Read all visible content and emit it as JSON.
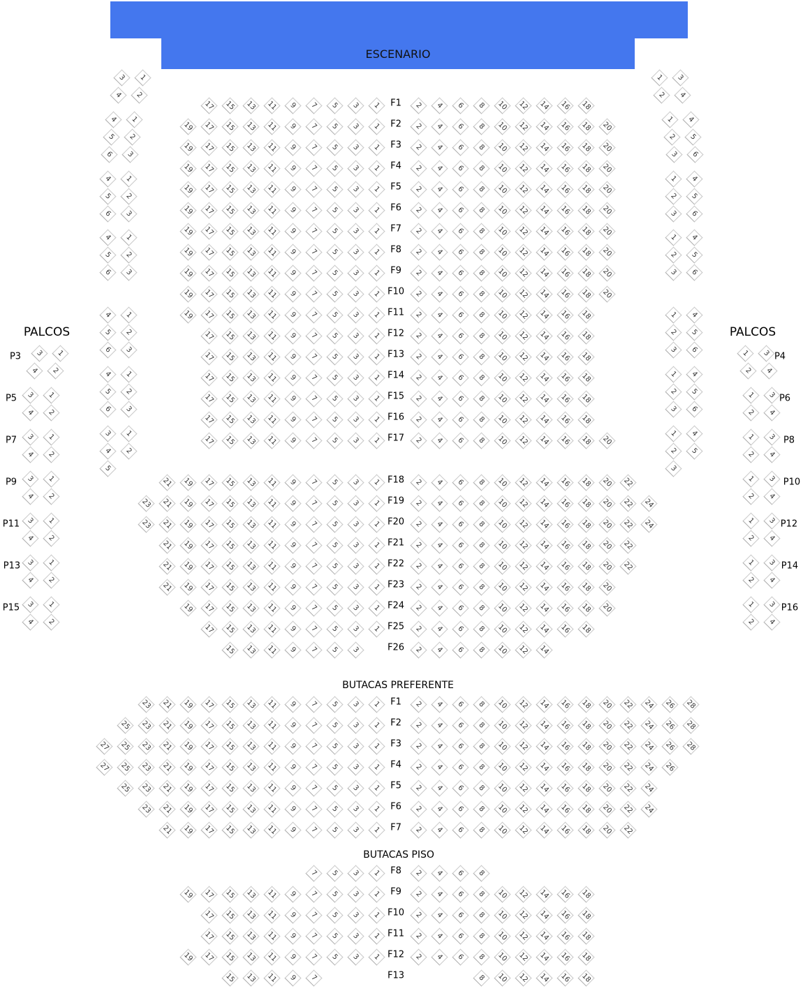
{
  "colors": {
    "stage": "#4477ee",
    "seat_border": "#c8c8c8",
    "seat_text": "#333333"
  },
  "stage": {
    "label": "ESCENARIO"
  },
  "palcos_left_title": "PALCOS",
  "palcos_right_title": "PALCOS",
  "main_section": {
    "rows": [
      {
        "label": "F1",
        "left": [
          1,
          17
        ],
        "right": [
          2,
          18
        ]
      },
      {
        "label": "F2",
        "left": [
          1,
          19
        ],
        "right": [
          2,
          20
        ]
      },
      {
        "label": "F3",
        "left": [
          1,
          19
        ],
        "right": [
          2,
          20
        ]
      },
      {
        "label": "F4",
        "left": [
          1,
          19
        ],
        "right": [
          2,
          20
        ]
      },
      {
        "label": "F5",
        "left": [
          1,
          19
        ],
        "right": [
          2,
          20
        ]
      },
      {
        "label": "F6",
        "left": [
          1,
          19
        ],
        "right": [
          2,
          20
        ]
      },
      {
        "label": "F7",
        "left": [
          1,
          19
        ],
        "right": [
          2,
          20
        ]
      },
      {
        "label": "F8",
        "left": [
          1,
          19
        ],
        "right": [
          2,
          20
        ]
      },
      {
        "label": "F9",
        "left": [
          1,
          19
        ],
        "right": [
          2,
          20
        ]
      },
      {
        "label": "F10",
        "left": [
          1,
          19
        ],
        "right": [
          2,
          20
        ]
      },
      {
        "label": "F11",
        "left": [
          1,
          19
        ],
        "right": [
          2,
          18
        ]
      },
      {
        "label": "F12",
        "left": [
          1,
          17
        ],
        "right": [
          2,
          18
        ]
      },
      {
        "label": "F13",
        "left": [
          1,
          17
        ],
        "right": [
          2,
          18
        ]
      },
      {
        "label": "F14",
        "left": [
          1,
          17
        ],
        "right": [
          2,
          18
        ]
      },
      {
        "label": "F15",
        "left": [
          1,
          17
        ],
        "right": [
          2,
          18
        ]
      },
      {
        "label": "F16",
        "left": [
          1,
          17
        ],
        "right": [
          2,
          18
        ]
      },
      {
        "label": "F17",
        "left": [
          1,
          17
        ],
        "right": [
          2,
          20
        ]
      },
      {
        "label": "F18",
        "left": [
          1,
          21
        ],
        "right": [
          2,
          22
        ]
      },
      {
        "label": "F19",
        "left": [
          1,
          23
        ],
        "right": [
          2,
          24
        ]
      },
      {
        "label": "F20",
        "left": [
          1,
          23
        ],
        "right": [
          2,
          24
        ]
      },
      {
        "label": "F21",
        "left": [
          1,
          21
        ],
        "right": [
          2,
          22
        ]
      },
      {
        "label": "F22",
        "left": [
          1,
          21
        ],
        "right": [
          2,
          22
        ]
      },
      {
        "label": "F23",
        "left": [
          1,
          21
        ],
        "right": [
          2,
          20
        ]
      },
      {
        "label": "F24",
        "left": [
          1,
          19
        ],
        "right": [
          2,
          20
        ]
      },
      {
        "label": "F25",
        "left": [
          1,
          17
        ],
        "right": [
          2,
          18
        ]
      },
      {
        "label": "F26",
        "left": [
          3,
          15
        ],
        "right": [
          2,
          14
        ]
      }
    ]
  },
  "preferente_section": {
    "title": "BUTACAS PREFERENTE",
    "rows": [
      {
        "label": "F1",
        "left": [
          1,
          23
        ],
        "right": [
          2,
          28
        ]
      },
      {
        "label": "F2",
        "left": [
          1,
          25
        ],
        "right": [
          2,
          28
        ]
      },
      {
        "label": "F3",
        "left": [
          1,
          27
        ],
        "right": [
          2,
          28
        ]
      },
      {
        "label": "F4",
        "left": [
          1,
          27
        ],
        "right": [
          2,
          26
        ]
      },
      {
        "label": "F5",
        "left": [
          1,
          25
        ],
        "right": [
          2,
          24
        ]
      },
      {
        "label": "F6",
        "left": [
          1,
          23
        ],
        "right": [
          2,
          24
        ]
      },
      {
        "label": "F7",
        "left": [
          1,
          21
        ],
        "right": [
          2,
          22
        ]
      }
    ]
  },
  "piso_section": {
    "title": "BUTACAS PISO",
    "rows": [
      {
        "label": "F8",
        "left": [
          1,
          7
        ],
        "right": [
          2,
          8
        ]
      },
      {
        "label": "F9",
        "left": [
          1,
          19
        ],
        "right": [
          2,
          18
        ]
      },
      {
        "label": "F10",
        "left": [
          1,
          17
        ],
        "right": [
          2,
          18
        ]
      },
      {
        "label": "F11",
        "left": [
          1,
          17
        ],
        "right": [
          2,
          18
        ]
      },
      {
        "label": "F12",
        "left": [
          1,
          19
        ],
        "right": [
          2,
          18
        ]
      },
      {
        "label": "F13",
        "left": [
          7,
          15
        ],
        "right": [
          8,
          18
        ]
      }
    ]
  },
  "side_boxes_left": [
    [
      [
        "3",
        "1"
      ],
      [
        "4",
        "2"
      ]
    ],
    [
      [
        "4",
        "1"
      ],
      [
        "5",
        "2"
      ],
      [
        "6",
        "3"
      ]
    ],
    [
      [
        "4",
        "1"
      ],
      [
        "5",
        "2"
      ],
      [
        "6",
        "3"
      ]
    ],
    [
      [
        "4",
        "1"
      ],
      [
        "5",
        "2"
      ],
      [
        "6",
        "3"
      ]
    ],
    [
      [
        "4",
        "1"
      ],
      [
        "5",
        "2"
      ],
      [
        "6",
        "3"
      ]
    ],
    [
      [
        "4",
        "1"
      ],
      [
        "5",
        "2"
      ],
      [
        "6",
        "3"
      ]
    ],
    [
      [
        "3",
        "1"
      ],
      [
        "4",
        "2"
      ],
      [
        "5"
      ]
    ]
  ],
  "side_boxes_right": [
    [
      [
        "1",
        "3"
      ],
      [
        "2",
        "4"
      ]
    ],
    [
      [
        "1",
        "4"
      ],
      [
        "2",
        "5"
      ],
      [
        "3",
        "6"
      ]
    ],
    [
      [
        "1",
        "4"
      ],
      [
        "2",
        "5"
      ],
      [
        "3",
        "6"
      ]
    ],
    [
      [
        "1",
        "4"
      ],
      [
        "2",
        "5"
      ],
      [
        "3",
        "6"
      ]
    ],
    [
      [
        "1",
        "4"
      ],
      [
        "2",
        "5"
      ],
      [
        "3",
        "6"
      ]
    ],
    [
      [
        "1",
        "4"
      ],
      [
        "2",
        "5"
      ],
      [
        "3",
        "6"
      ]
    ],
    [
      [
        "1",
        "4"
      ],
      [
        "2",
        "5"
      ],
      [
        "3"
      ]
    ]
  ],
  "palcos_left": [
    {
      "label": "P3",
      "seats": [
        [
          "3",
          "1"
        ],
        [
          "4",
          "2"
        ]
      ]
    },
    {
      "label": "P5",
      "seats": [
        [
          "3",
          "1"
        ],
        [
          "4",
          "2"
        ]
      ]
    },
    {
      "label": "P7",
      "seats": [
        [
          "3",
          "1"
        ],
        [
          "4",
          "2"
        ]
      ]
    },
    {
      "label": "P9",
      "seats": [
        [
          "3",
          "1"
        ],
        [
          "4",
          "2"
        ]
      ]
    },
    {
      "label": "P11",
      "seats": [
        [
          "3",
          "1"
        ],
        [
          "4",
          "2"
        ]
      ]
    },
    {
      "label": "P13",
      "seats": [
        [
          "3",
          "1"
        ],
        [
          "4",
          "2"
        ]
      ]
    },
    {
      "label": "P15",
      "seats": [
        [
          "3",
          "1"
        ],
        [
          "4",
          "2"
        ]
      ]
    }
  ],
  "palcos_right": [
    {
      "label": "P4",
      "seats": [
        [
          "1",
          "3"
        ],
        [
          "2",
          "4"
        ]
      ]
    },
    {
      "label": "P6",
      "seats": [
        [
          "1",
          "3"
        ],
        [
          "2",
          "4"
        ]
      ]
    },
    {
      "label": "P8",
      "seats": [
        [
          "1",
          "3"
        ],
        [
          "2",
          "4"
        ]
      ]
    },
    {
      "label": "P10",
      "seats": [
        [
          "1",
          "3"
        ],
        [
          "2",
          "4"
        ]
      ]
    },
    {
      "label": "P12",
      "seats": [
        [
          "1",
          "3"
        ],
        [
          "2",
          "4"
        ]
      ]
    },
    {
      "label": "P14",
      "seats": [
        [
          "1",
          "3"
        ],
        [
          "2",
          "4"
        ]
      ]
    },
    {
      "label": "P16",
      "seats": [
        [
          "1",
          "3"
        ],
        [
          "2",
          "4"
        ]
      ]
    }
  ]
}
